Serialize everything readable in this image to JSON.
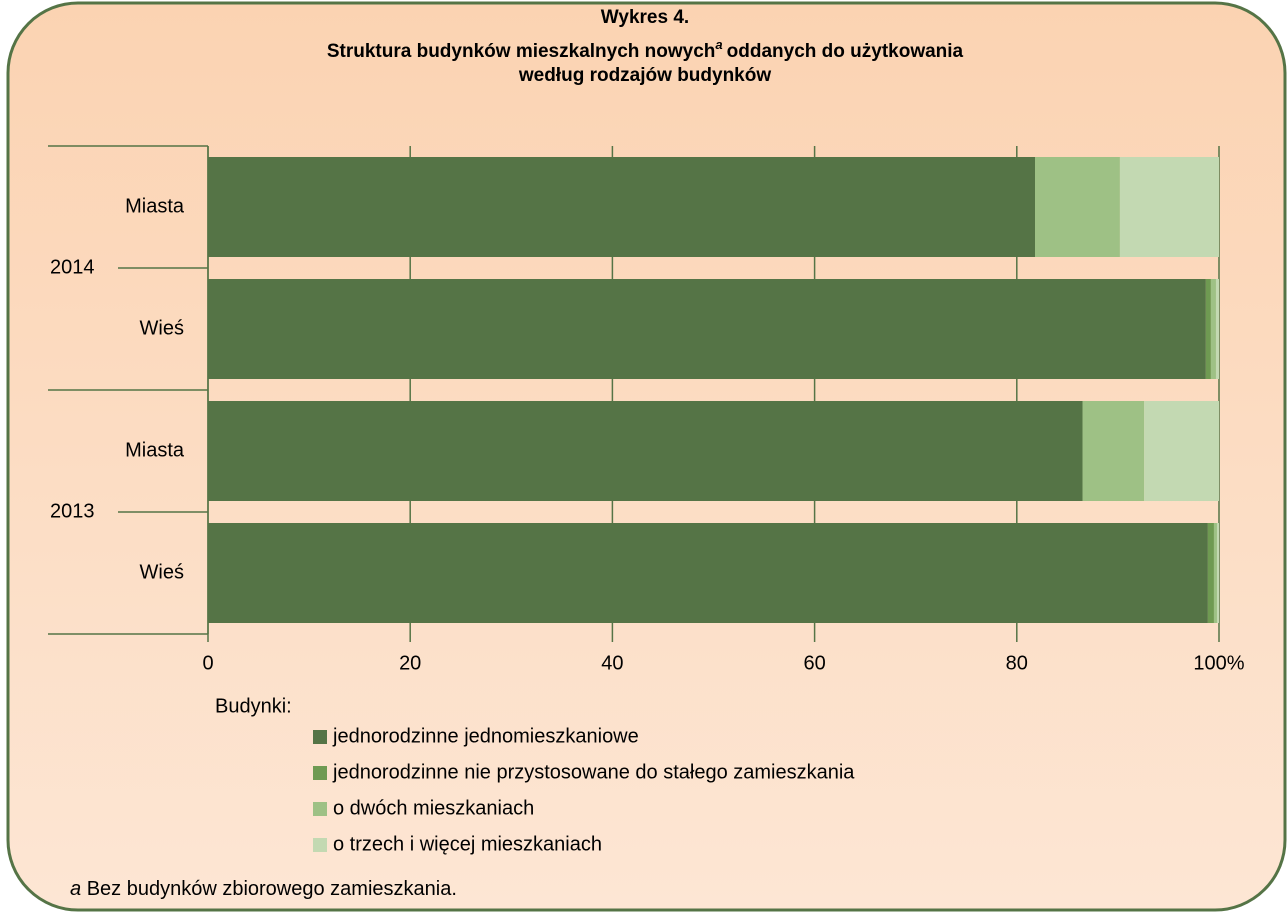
{
  "chart_data": {
    "type": "bar",
    "orientation": "horizontal",
    "stacked": true,
    "title": {
      "line1": "Wykres 4.",
      "line2a": "Struktura budynków mieszkalnych nowych",
      "marker": "a",
      "line2b": "oddanych do użytkowania",
      "line3": "według rodzajów budynków"
    },
    "categories": [
      "Miasta",
      "Wieś",
      "Miasta",
      "Wieś"
    ],
    "groups": [
      {
        "name": "2014",
        "size": 2
      },
      {
        "name": "2013",
        "size": 2
      }
    ],
    "series": [
      {
        "name": "jednorodzinne jednomieszkaniowe",
        "color": "#557446",
        "values": [
          81.8,
          98.7,
          86.5,
          98.9
        ]
      },
      {
        "name": "jednorodzinne nie przystosowane do stałego zamieszkania",
        "color": "#6f9a52",
        "values": [
          0,
          0.5,
          0,
          0.6
        ]
      },
      {
        "name": "o dwóch mieszkaniach",
        "color": "#9ec185",
        "values": [
          8.4,
          0.5,
          6.1,
          0.3
        ]
      },
      {
        "name": "o trzech i więcej mieszkaniach",
        "color": "#c3d9b2",
        "values": [
          9.8,
          0.3,
          7.4,
          0.2
        ]
      }
    ],
    "xlim": [
      0,
      100
    ],
    "xticks": [
      0,
      20,
      40,
      60,
      80,
      {
        "value": 100,
        "label": "100%"
      }
    ],
    "grid": true,
    "legend_title": "Budynki:",
    "legend": "bottom",
    "footnote": {
      "marker": "a",
      "text": "Bez budynków zbiorowego zamieszkania."
    }
  }
}
